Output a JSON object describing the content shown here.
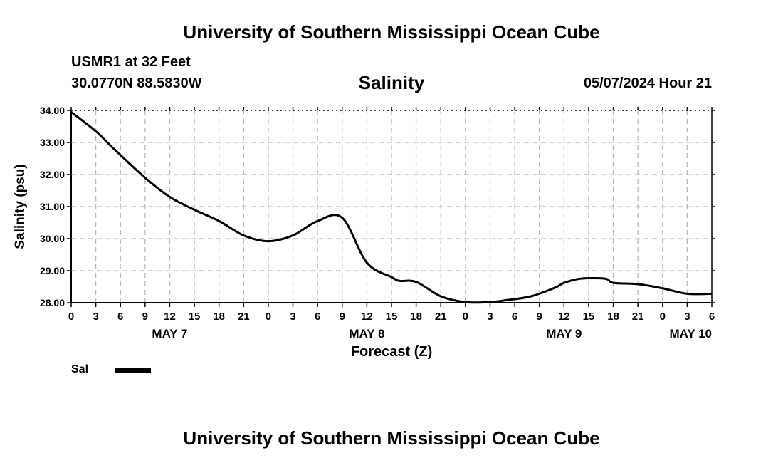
{
  "header": {
    "title_top": "University of Southern Mississippi Ocean Cube",
    "station": "USMR1 at 32 Feet",
    "coords": "30.0770N  88.5830W",
    "datetime": "05/07/2024 Hour 21",
    "title_bottom": "University of Southern Mississippi Ocean Cube"
  },
  "legend": {
    "label": "Sal",
    "color": "#000000"
  },
  "chart_data": {
    "type": "line",
    "title": "Salinity",
    "xlabel": "Forecast (Z)",
    "ylabel": "Salinity (psu)",
    "ylim": [
      28,
      34
    ],
    "xlim": [
      0,
      78
    ],
    "grid": true,
    "y_ticks": [
      "28.00",
      "29.00",
      "30.00",
      "31.00",
      "32.00",
      "33.00",
      "34.00"
    ],
    "x_ticks": [
      "0",
      "3",
      "6",
      "9",
      "12",
      "15",
      "18",
      "21",
      "0",
      "3",
      "6",
      "9",
      "12",
      "15",
      "18",
      "21",
      "0",
      "3",
      "6",
      "9",
      "12",
      "15",
      "18",
      "21",
      "0",
      "3",
      "6"
    ],
    "date_labels": [
      {
        "label": "MAY 7",
        "hour": 12
      },
      {
        "label": "MAY 8",
        "hour": 36
      },
      {
        "label": "MAY 9",
        "hour": 60
      },
      {
        "label": "MAY 10",
        "hour": 78
      }
    ],
    "series": [
      {
        "name": "Sal",
        "x": [
          0,
          3,
          5,
          9,
          12,
          15,
          18,
          21,
          24,
          27,
          30,
          33,
          36,
          39,
          40,
          42,
          45,
          48,
          51,
          53,
          56,
          59,
          60,
          62,
          65,
          66,
          69,
          72,
          75,
          78
        ],
        "values": [
          33.95,
          33.35,
          32.85,
          31.9,
          31.3,
          30.9,
          30.55,
          30.1,
          29.92,
          30.1,
          30.55,
          30.65,
          29.25,
          28.8,
          28.68,
          28.65,
          28.2,
          28.02,
          28.02,
          28.08,
          28.2,
          28.48,
          28.62,
          28.75,
          28.75,
          28.62,
          28.58,
          28.45,
          28.28,
          28.28
        ]
      }
    ]
  }
}
